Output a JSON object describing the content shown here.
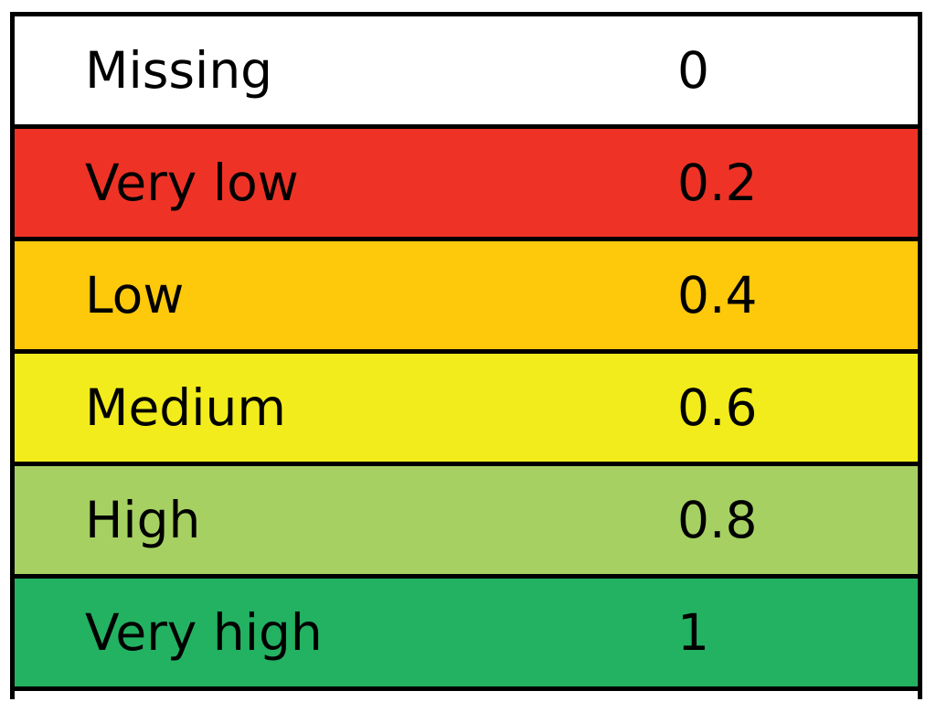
{
  "scale": {
    "rows": [
      {
        "label": "Missing",
        "value": "0",
        "color": "#ffffff"
      },
      {
        "label": "Very low",
        "value": "0.2",
        "color": "#ee3326"
      },
      {
        "label": "Low",
        "value": "0.4",
        "color": "#fec80b"
      },
      {
        "label": "Medium",
        "value": "0.6",
        "color": "#f2ec1c"
      },
      {
        "label": "High",
        "value": "0.8",
        "color": "#a6d162"
      },
      {
        "label": "Very high",
        "value": "1",
        "color": "#23b262"
      }
    ]
  }
}
